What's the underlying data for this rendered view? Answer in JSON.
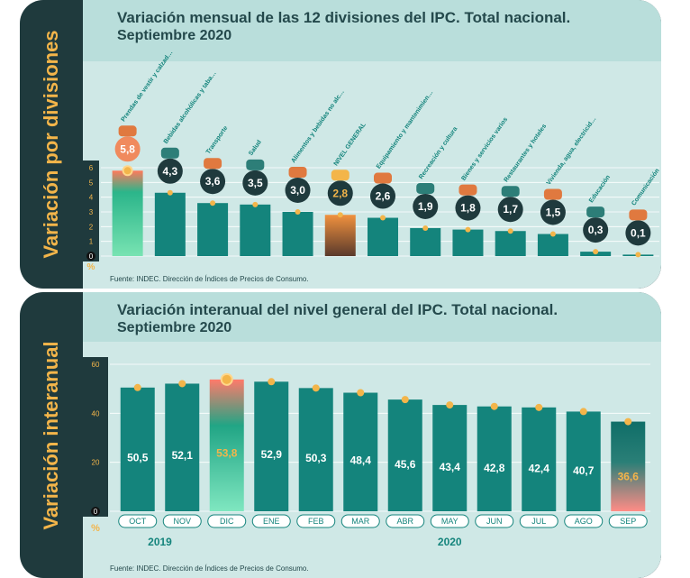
{
  "panel1": {
    "side_title": "Variación por divisiones",
    "title": "Variación mensual de las 12 divisiones del IPC. Total nacional.",
    "subtitle": "Septiembre 2020",
    "unit": "%",
    "source": "Fuente: INDEC. Dirección de Índices de Precios de Consumo."
  },
  "panel2": {
    "side_title": "Variación interanual",
    "title": "Variación interanual del nivel general del IPC. Total nacional.",
    "subtitle": "Septiembre 2020",
    "unit": "%",
    "years": [
      "2019",
      "2020"
    ],
    "source": "Fuente: INDEC. Dirección de Índices de Precios de Consumo."
  },
  "colors": {
    "teal": "#14847c",
    "highlight": "#f3b54a",
    "dark": "#1f3a3d",
    "background": "#cfe8e6"
  },
  "chart_data": [
    {
      "type": "bar",
      "categories": [
        "Prendas de vestir y calzado",
        "Bebidas alcohólicas y tabaco",
        "Transporte",
        "Salud",
        "Alimentos y bebidas no alcohólicas",
        "NIVEL GENERAL",
        "Equipamiento y mantenimiento del hogar",
        "Recreación y cultura",
        "Bienes y servicios varios",
        "Restaurantes y hoteles",
        "Vivienda, agua, electricidad, gas y otros combustibles",
        "Educación",
        "Comunicación"
      ],
      "values": [
        5.8,
        4.3,
        3.6,
        3.5,
        3.0,
        2.8,
        2.6,
        1.9,
        1.8,
        1.7,
        1.5,
        0.3,
        0.1
      ],
      "value_labels": [
        "5,8",
        "4,3",
        "3,6",
        "3,5",
        "3,0",
        "2,8",
        "2,6",
        "1,9",
        "1,8",
        "1,7",
        "1,5",
        "0,3",
        "0,1"
      ],
      "icons": [
        "clothing-icon",
        "bottle-icon",
        "vehicle-icon",
        "health-cross-icon",
        "food-basket-icon",
        "shopping-bag-icon",
        "appliance-icon",
        "recreation-icon",
        "personal-care-icon",
        "restaurant-icon",
        "house-bulb-icon",
        "book-icon",
        "phone-icon"
      ],
      "yticks": [
        "0",
        "1",
        "2",
        "3",
        "4",
        "5",
        "6"
      ],
      "ylim": [
        0,
        6
      ],
      "grid": true
    },
    {
      "type": "bar",
      "categories": [
        "OCT",
        "NOV",
        "DIC",
        "ENE",
        "FEB",
        "MAR",
        "ABR",
        "MAY",
        "JUN",
        "JUL",
        "AGO",
        "SEP"
      ],
      "values": [
        50.5,
        52.1,
        53.8,
        52.9,
        50.3,
        48.4,
        45.6,
        43.4,
        42.8,
        42.4,
        40.7,
        36.6
      ],
      "value_labels": [
        "50,5",
        "52,1",
        "53,8",
        "52,9",
        "50,3",
        "48,4",
        "45,6",
        "43,4",
        "42,8",
        "42,4",
        "40,7",
        "36,6"
      ],
      "yticks": [
        "0",
        "20",
        "40",
        "60"
      ],
      "ylim": [
        0,
        60
      ],
      "grid": true
    }
  ]
}
